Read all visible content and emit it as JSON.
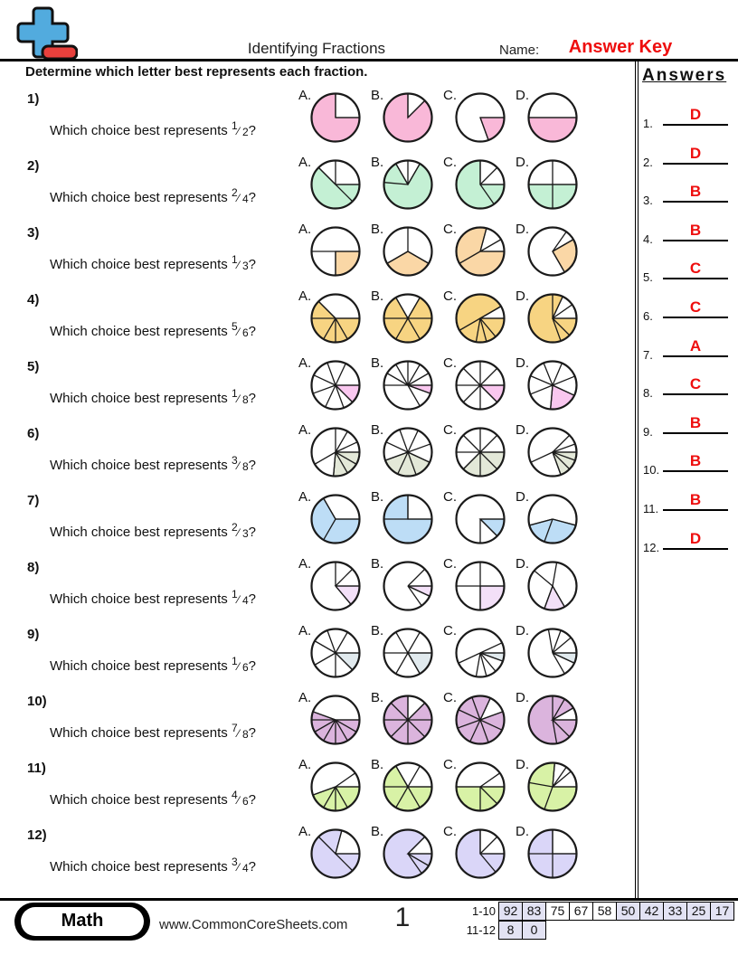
{
  "header": {
    "title": "Identifying Fractions",
    "name_label": "Name:",
    "name_value": "Answer Key",
    "logo_icon": "plus-minus-icon"
  },
  "instruction": "Determine which letter best represents each fraction.",
  "colors": {
    "answer_red": "#EE0E0E",
    "cell_highlight": "#E2E2F3",
    "logo_blue": "#52ABDE",
    "logo_red": "#E8403C",
    "pie_outline": "#1a1a1a"
  },
  "questions": [
    {
      "number": "1)",
      "stem": "Which choice best represents",
      "numerator": "1",
      "denominator": "2",
      "color": "#F9B8D8",
      "choices": [
        {
          "label": "A.",
          "lines": [
            90,
            0
          ],
          "shaded": [
            [
              90,
              360
            ]
          ]
        },
        {
          "label": "B.",
          "lines": [
            90,
            45
          ],
          "shaded": [
            [
              90,
              405
            ]
          ]
        },
        {
          "label": "C.",
          "lines": [
            0,
            -70
          ],
          "shaded": [
            [
              -70,
              0
            ]
          ]
        },
        {
          "label": "D.",
          "lines": [
            180,
            0
          ],
          "shaded": [
            [
              180,
              360
            ]
          ]
        }
      ]
    },
    {
      "number": "2)",
      "stem": "Which choice best represents",
      "numerator": "2",
      "denominator": "4",
      "color": "#C4F0D4",
      "choices": [
        {
          "label": "A.",
          "lines": [
            135,
            90,
            0,
            -45
          ],
          "shaded": [
            [
              135,
              360
            ]
          ]
        },
        {
          "label": "B.",
          "lines": [
            120,
            90,
            60,
            175
          ],
          "shaded": [
            [
              120,
              420
            ]
          ]
        },
        {
          "label": "C.",
          "lines": [
            90,
            45,
            0,
            -55
          ],
          "shaded": [
            [
              90,
              360
            ]
          ]
        },
        {
          "label": "D.",
          "lines": [
            0,
            90,
            180,
            270
          ],
          "shaded": [
            [
              180,
              360
            ]
          ]
        }
      ]
    },
    {
      "number": "3)",
      "stem": "Which choice best represents",
      "numerator": "1",
      "denominator": "3",
      "color": "#FAD7A6",
      "choices": [
        {
          "label": "A.",
          "lines": [
            180,
            0,
            270
          ],
          "shaded": [
            [
              270,
              360
            ]
          ]
        },
        {
          "label": "B.",
          "lines": [
            90,
            210,
            330
          ],
          "shaded": [
            [
              210,
              330
            ]
          ]
        },
        {
          "label": "C.",
          "lines": [
            75,
            30,
            210,
            0
          ],
          "shaded": [
            [
              75,
              360
            ]
          ]
        },
        {
          "label": "D.",
          "lines": [
            55,
            30,
            -60
          ],
          "shaded": [
            [
              -60,
              30
            ]
          ]
        }
      ]
    },
    {
      "number": "4)",
      "stem": "Which choice best represents",
      "numerator": "5",
      "denominator": "6",
      "color": "#F7D482",
      "choices": [
        {
          "label": "A.",
          "lines": [
            135,
            180,
            240,
            270,
            300,
            0
          ],
          "shaded": [
            [
              135,
              360
            ]
          ]
        },
        {
          "label": "B.",
          "lines": [
            0,
            60,
            120,
            180,
            240,
            300
          ],
          "shaded": [
            [
              120,
              420
            ]
          ]
        },
        {
          "label": "C.",
          "lines": [
            30,
            210,
            0,
            -50,
            -75,
            -100
          ],
          "shaded": [
            [
              30,
              360
            ]
          ]
        },
        {
          "label": "D.",
          "lines": [
            90,
            65,
            35,
            0,
            -45,
            -70
          ],
          "shaded": [
            [
              65,
              360
            ]
          ]
        }
      ]
    },
    {
      "number": "5)",
      "stem": "Which choice best represents",
      "numerator": "1",
      "denominator": "8",
      "color": "#F9C7EF",
      "choices": [
        {
          "label": "A.",
          "lines": [
            0,
            65,
            110,
            155,
            200,
            245,
            290,
            -45
          ],
          "shaded": [
            [
              -45,
              0
            ]
          ]
        },
        {
          "label": "B.",
          "lines": [
            0,
            30,
            60,
            90,
            120,
            150,
            180,
            -20,
            -60
          ],
          "shaded": [
            [
              -20,
              0
            ]
          ]
        },
        {
          "label": "C.",
          "lines": [
            0,
            45,
            90,
            135,
            180,
            225,
            270,
            315
          ],
          "shaded": [
            [
              315,
              360
            ]
          ]
        },
        {
          "label": "D.",
          "lines": [
            22,
            67,
            112,
            157,
            202,
            -25,
            -95
          ],
          "shaded": [
            [
              -95,
              -25
            ]
          ]
        }
      ]
    },
    {
      "number": "6)",
      "stem": "Which choice best represents",
      "numerator": "3",
      "denominator": "8",
      "color": "#E3E8D8",
      "choices": [
        {
          "label": "A.",
          "lines": [
            90,
            60,
            25,
            0,
            -30,
            -60,
            -95,
            210
          ],
          "shaded": [
            [
              -95,
              0
            ]
          ]
        },
        {
          "label": "B.",
          "lines": [
            20,
            65,
            110,
            155,
            200,
            245,
            290,
            335
          ],
          "shaded": [
            [
              200,
              335
            ]
          ]
        },
        {
          "label": "C.",
          "lines": [
            0,
            45,
            90,
            135,
            180,
            225,
            270,
            315
          ],
          "shaded": [
            [
              225,
              360
            ]
          ]
        },
        {
          "label": "D.",
          "lines": [
            45,
            20,
            205,
            0,
            -20,
            -45,
            -70
          ],
          "shaded": [
            [
              -70,
              0
            ]
          ]
        }
      ]
    },
    {
      "number": "7)",
      "stem": "Which choice best represents",
      "numerator": "2",
      "denominator": "3",
      "color": "#BDDDF6",
      "choices": [
        {
          "label": "A.",
          "lines": [
            120,
            240,
            0
          ],
          "shaded": [
            [
              120,
              360
            ]
          ]
        },
        {
          "label": "B.",
          "lines": [
            90,
            180,
            0
          ],
          "shaded": [
            [
              90,
              360
            ]
          ]
        },
        {
          "label": "C.",
          "lines": [
            0,
            -45,
            -90
          ],
          "shaded": [
            [
              -45,
              0
            ]
          ]
        },
        {
          "label": "D.",
          "lines": [
            195,
            250,
            345
          ],
          "shaded": [
            [
              195,
              345
            ]
          ]
        }
      ]
    },
    {
      "number": "8)",
      "stem": "Which choice best represents",
      "numerator": "1",
      "denominator": "4",
      "color": "#F3E0F8",
      "choices": [
        {
          "label": "A.",
          "lines": [
            90,
            45,
            0,
            -50
          ],
          "shaded": [
            [
              -50,
              0
            ]
          ]
        },
        {
          "label": "B.",
          "lines": [
            45,
            0,
            -25,
            -55
          ],
          "shaded": [
            [
              -25,
              0
            ]
          ]
        },
        {
          "label": "C.",
          "lines": [
            0,
            90,
            180,
            270
          ],
          "shaded": [
            [
              270,
              360
            ]
          ]
        },
        {
          "label": "D.",
          "lines": [
            140,
            80,
            -60,
            -110
          ],
          "shaded": [
            [
              -110,
              -60
            ]
          ]
        }
      ]
    },
    {
      "number": "9)",
      "stem": "Which choice best represents",
      "numerator": "1",
      "denominator": "6",
      "color": "#E1EAEE",
      "choices": [
        {
          "label": "A.",
          "lines": [
            150,
            110,
            60,
            0,
            -45,
            -90,
            210
          ],
          "shaded": [
            [
              -45,
              0
            ]
          ]
        },
        {
          "label": "B.",
          "lines": [
            0,
            60,
            120,
            180,
            240,
            300
          ],
          "shaded": [
            [
              300,
              360
            ]
          ]
        },
        {
          "label": "C.",
          "lines": [
            25,
            205,
            0,
            -20,
            -50,
            -75,
            -100
          ],
          "shaded": [
            [
              -20,
              0
            ]
          ]
        },
        {
          "label": "D.",
          "lines": [
            100,
            70,
            40,
            0,
            -25,
            -60
          ],
          "shaded": [
            [
              -25,
              0
            ]
          ]
        }
      ]
    },
    {
      "number": "10)",
      "stem": "Which choice best represents",
      "numerator": "7",
      "denominator": "8",
      "color": "#DBB4DD",
      "choices": [
        {
          "label": "A.",
          "lines": [
            160,
            180,
            0,
            -30,
            -60,
            -90,
            -120,
            -150
          ],
          "shaded": [
            [
              160,
              360
            ]
          ]
        },
        {
          "label": "B.",
          "lines": [
            0,
            45,
            90,
            135,
            180,
            225,
            270,
            315
          ],
          "shaded": [
            [
              90,
              405
            ]
          ]
        },
        {
          "label": "C.",
          "lines": [
            20,
            65,
            110,
            155,
            200,
            245,
            290,
            335
          ],
          "shaded": [
            [
              65,
              380
            ]
          ]
        },
        {
          "label": "D.",
          "lines": [
            30,
            60,
            90,
            0,
            -45,
            -80
          ],
          "shaded": [
            [
              30,
              360
            ]
          ]
        }
      ]
    },
    {
      "number": "11)",
      "stem": "Which choice best represents",
      "numerator": "4",
      "denominator": "6",
      "color": "#D8F2A6",
      "choices": [
        {
          "label": "A.",
          "lines": [
            35,
            200,
            240,
            270,
            300,
            0
          ],
          "shaded": [
            [
              200,
              360
            ]
          ]
        },
        {
          "label": "B.",
          "lines": [
            0,
            60,
            120,
            180,
            240,
            300
          ],
          "shaded": [
            [
              120,
              360
            ]
          ]
        },
        {
          "label": "C.",
          "lines": [
            180,
            35,
            0,
            -45,
            -90
          ],
          "shaded": [
            [
              180,
              360
            ]
          ]
        },
        {
          "label": "D.",
          "lines": [
            85,
            55,
            40,
            0,
            170,
            250
          ],
          "shaded": [
            [
              85,
              360
            ]
          ]
        }
      ]
    },
    {
      "number": "12)",
      "stem": "Which choice best represents",
      "numerator": "3",
      "denominator": "4",
      "color": "#DAD6F8",
      "choices": [
        {
          "label": "A.",
          "lines": [
            135,
            75,
            0,
            -45
          ],
          "shaded": [
            [
              75,
              360
            ]
          ]
        },
        {
          "label": "B.",
          "lines": [
            45,
            0,
            -30,
            -55
          ],
          "shaded": [
            [
              45,
              360
            ]
          ]
        },
        {
          "label": "C.",
          "lines": [
            90,
            45,
            0,
            -50
          ],
          "shaded": [
            [
              90,
              360
            ]
          ]
        },
        {
          "label": "D.",
          "lines": [
            0,
            90,
            180,
            270
          ],
          "shaded": [
            [
              90,
              360
            ]
          ]
        }
      ]
    }
  ],
  "answers_panel": {
    "title": "Answers",
    "answers": [
      "D",
      "D",
      "B",
      "B",
      "C",
      "C",
      "A",
      "C",
      "B",
      "B",
      "B",
      "D"
    ]
  },
  "footer": {
    "badge": "Math",
    "website": "www.CommonCoreSheets.com",
    "page": "1",
    "score_rows": [
      {
        "label": "1-10",
        "cells": [
          {
            "v": "92",
            "hl": true
          },
          {
            "v": "83",
            "hl": true
          },
          {
            "v": "75",
            "hl": false
          },
          {
            "v": "67",
            "hl": false
          },
          {
            "v": "58",
            "hl": false
          },
          {
            "v": "50",
            "hl": true
          },
          {
            "v": "42",
            "hl": true
          },
          {
            "v": "33",
            "hl": true
          },
          {
            "v": "25",
            "hl": true
          },
          {
            "v": "17",
            "hl": true
          }
        ]
      },
      {
        "label": "11-12",
        "cells": [
          {
            "v": "8",
            "hl": true
          },
          {
            "v": "0",
            "hl": true
          }
        ]
      }
    ]
  }
}
